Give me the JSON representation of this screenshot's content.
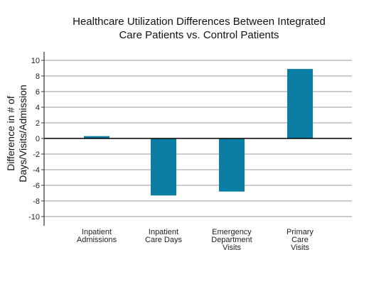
{
  "chart_data": {
    "type": "bar",
    "title_lines": [
      "Healthcare Utilization Differences Between Integrated",
      "Care Patients vs. Control Patients"
    ],
    "ylabel_lines": [
      "Difference in # of",
      "Days/Visits/Admission"
    ],
    "xlabel": "",
    "categories": [
      [
        "Inpatient",
        "Admissions"
      ],
      [
        "Inpatient",
        "Care Days"
      ],
      [
        "Emergency",
        "Department",
        "Visits"
      ],
      [
        "Primary",
        "Care",
        "Visits"
      ]
    ],
    "values": [
      0.3,
      -7.3,
      -6.8,
      8.9
    ],
    "ylim": [
      -10,
      10
    ],
    "yticks": [
      "-10",
      "-8",
      "-6",
      "-4",
      "-2",
      "0",
      "2",
      "4",
      "6",
      "8",
      "10"
    ],
    "grid": true,
    "bar_color": "#0b7ea3",
    "grid_color": "#9a9a9a",
    "zero_line_color": "#000000"
  }
}
